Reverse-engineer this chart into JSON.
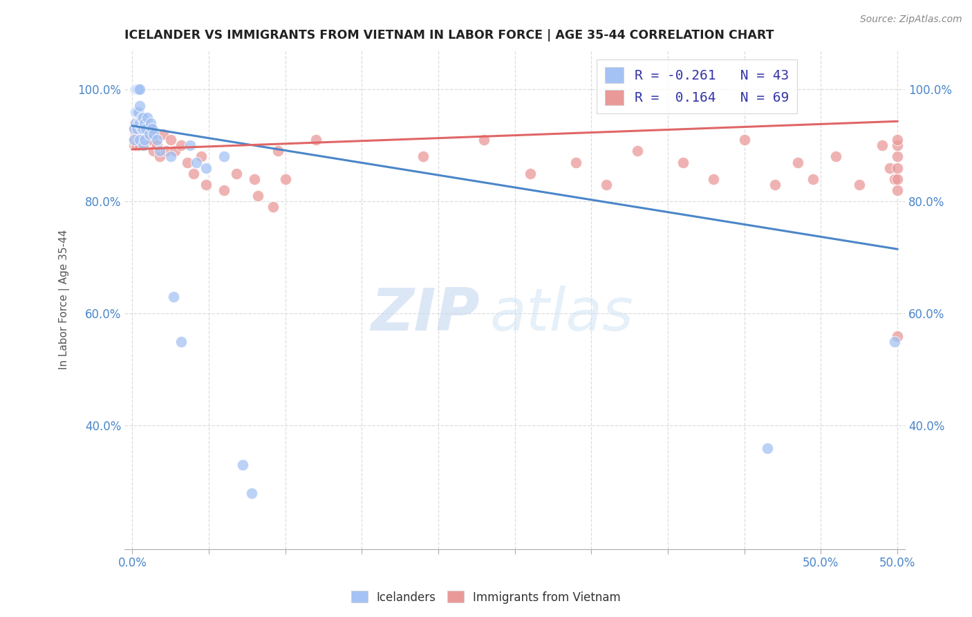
{
  "title": "ICELANDER VS IMMIGRANTS FROM VIETNAM IN LABOR FORCE | AGE 35-44 CORRELATION CHART",
  "source": "Source: ZipAtlas.com",
  "xlabel_label": "Icelanders",
  "xlabel_label2": "Immigrants from Vietnam",
  "ylabel": "In Labor Force | Age 35-44",
  "xlim": [
    -0.005,
    0.505
  ],
  "ylim": [
    0.18,
    1.07
  ],
  "xticks": [
    0.0,
    0.05,
    0.1,
    0.15,
    0.2,
    0.25,
    0.3,
    0.35,
    0.4,
    0.45,
    0.5
  ],
  "xtick_labels_show": {
    "0.0": "0.0%",
    "0.5": "50.0%"
  },
  "yticks": [
    0.4,
    0.6,
    0.8,
    1.0
  ],
  "ytick_labels": [
    "40.0%",
    "60.0%",
    "80.0%",
    "100.0%"
  ],
  "legend_R1": "-0.261",
  "legend_N1": "43",
  "legend_R2": "0.164",
  "legend_N2": "69",
  "blue_color": "#a4c2f4",
  "pink_color": "#ea9999",
  "blue_line_color": "#4a86c8",
  "pink_line_color": "#e06666",
  "watermark_zip": "ZIP",
  "watermark_atlas": "atlas",
  "blue_line_x": [
    0.0,
    0.5
  ],
  "blue_line_y": [
    0.935,
    0.715
  ],
  "pink_line_x": [
    0.0,
    0.5
  ],
  "pink_line_y": [
    0.893,
    0.943
  ],
  "icelanders_x": [
    0.001,
    0.001,
    0.002,
    0.002,
    0.002,
    0.003,
    0.003,
    0.003,
    0.003,
    0.004,
    0.004,
    0.004,
    0.004,
    0.005,
    0.005,
    0.005,
    0.005,
    0.006,
    0.006,
    0.007,
    0.007,
    0.007,
    0.008,
    0.008,
    0.009,
    0.01,
    0.011,
    0.012,
    0.013,
    0.014,
    0.016,
    0.018,
    0.025,
    0.027,
    0.032,
    0.038,
    0.042,
    0.048,
    0.06,
    0.072,
    0.078,
    0.415,
    0.498
  ],
  "icelanders_y": [
    0.93,
    0.91,
    1.0,
    0.96,
    0.94,
    1.0,
    1.0,
    0.96,
    0.93,
    1.0,
    1.0,
    0.96,
    0.94,
    1.0,
    0.97,
    0.94,
    0.91,
    0.95,
    0.93,
    0.95,
    0.93,
    0.9,
    0.94,
    0.91,
    0.93,
    0.95,
    0.92,
    0.94,
    0.93,
    0.92,
    0.91,
    0.89,
    0.88,
    0.63,
    0.55,
    0.9,
    0.87,
    0.86,
    0.88,
    0.33,
    0.28,
    0.36,
    0.55
  ],
  "vietnam_x": [
    0.001,
    0.001,
    0.001,
    0.002,
    0.002,
    0.002,
    0.003,
    0.003,
    0.003,
    0.004,
    0.004,
    0.005,
    0.005,
    0.005,
    0.006,
    0.006,
    0.007,
    0.007,
    0.008,
    0.008,
    0.009,
    0.01,
    0.011,
    0.012,
    0.013,
    0.014,
    0.016,
    0.018,
    0.02,
    0.022,
    0.025,
    0.028,
    0.032,
    0.036,
    0.04,
    0.045,
    0.048,
    0.06,
    0.068,
    0.08,
    0.082,
    0.092,
    0.095,
    0.1,
    0.12,
    0.19,
    0.23,
    0.26,
    0.29,
    0.31,
    0.33,
    0.36,
    0.38,
    0.4,
    0.42,
    0.435,
    0.445,
    0.46,
    0.475,
    0.49,
    0.495,
    0.498,
    0.5,
    0.5,
    0.5,
    0.5,
    0.5,
    0.5,
    0.5
  ],
  "vietnam_y": [
    0.93,
    0.91,
    0.9,
    0.94,
    0.92,
    0.9,
    0.94,
    0.92,
    0.9,
    0.93,
    0.91,
    0.94,
    0.92,
    0.9,
    0.93,
    0.91,
    0.93,
    0.91,
    0.92,
    0.9,
    0.91,
    0.93,
    0.91,
    0.93,
    0.91,
    0.89,
    0.9,
    0.88,
    0.92,
    0.89,
    0.91,
    0.89,
    0.9,
    0.87,
    0.85,
    0.88,
    0.83,
    0.82,
    0.85,
    0.84,
    0.81,
    0.79,
    0.89,
    0.84,
    0.91,
    0.88,
    0.91,
    0.85,
    0.87,
    0.83,
    0.89,
    0.87,
    0.84,
    0.91,
    0.83,
    0.87,
    0.84,
    0.88,
    0.83,
    0.9,
    0.86,
    0.84,
    0.88,
    0.86,
    0.82,
    0.9,
    0.84,
    0.91,
    0.56
  ]
}
